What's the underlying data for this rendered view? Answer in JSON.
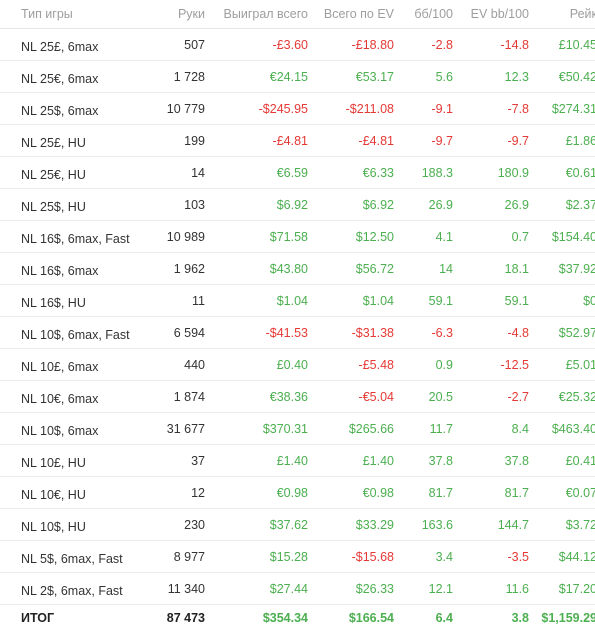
{
  "colors": {
    "header_text": "#9e9e9e",
    "positive": "#4caf50",
    "negative": "#e53935",
    "body_text": "#333333"
  },
  "table": {
    "headers": [
      "Тип игры",
      "Руки",
      "Выиграл всего",
      "Всего по EV",
      "бб/100",
      "EV bb/100",
      "Рейк"
    ],
    "rows": [
      {
        "cells": [
          "NL 25£, 6max",
          "507",
          "-£3.60",
          "-£18.80",
          "-2.8",
          "-14.8",
          "£10.45"
        ],
        "signs": [
          "",
          "",
          "neg",
          "neg",
          "neg",
          "neg",
          "pos"
        ]
      },
      {
        "cells": [
          "NL 25€, 6max",
          "1 728",
          "€24.15",
          "€53.17",
          "5.6",
          "12.3",
          "€50.42"
        ],
        "signs": [
          "",
          "",
          "pos",
          "pos",
          "pos",
          "pos",
          "pos"
        ]
      },
      {
        "cells": [
          "NL 25$, 6max",
          "10 779",
          "-$245.95",
          "-$211.08",
          "-9.1",
          "-7.8",
          "$274.31"
        ],
        "signs": [
          "",
          "",
          "neg",
          "neg",
          "neg",
          "neg",
          "pos"
        ]
      },
      {
        "cells": [
          "NL 25£, HU",
          "199",
          "-£4.81",
          "-£4.81",
          "-9.7",
          "-9.7",
          "£1.86"
        ],
        "signs": [
          "",
          "",
          "neg",
          "neg",
          "neg",
          "neg",
          "pos"
        ]
      },
      {
        "cells": [
          "NL 25€, HU",
          "14",
          "€6.59",
          "€6.33",
          "188.3",
          "180.9",
          "€0.61"
        ],
        "signs": [
          "",
          "",
          "pos",
          "pos",
          "pos",
          "pos",
          "pos"
        ]
      },
      {
        "cells": [
          "NL 25$, HU",
          "103",
          "$6.92",
          "$6.92",
          "26.9",
          "26.9",
          "$2.37"
        ],
        "signs": [
          "",
          "",
          "pos",
          "pos",
          "pos",
          "pos",
          "pos"
        ]
      },
      {
        "cells": [
          "NL 16$, 6max, Fast",
          "10 989",
          "$71.58",
          "$12.50",
          "4.1",
          "0.7",
          "$154.40"
        ],
        "signs": [
          "",
          "",
          "pos",
          "pos",
          "pos",
          "pos",
          "pos"
        ]
      },
      {
        "cells": [
          "NL 16$, 6max",
          "1 962",
          "$43.80",
          "$56.72",
          "14",
          "18.1",
          "$37.92"
        ],
        "signs": [
          "",
          "",
          "pos",
          "pos",
          "pos",
          "pos",
          "pos"
        ]
      },
      {
        "cells": [
          "NL 16$, HU",
          "11",
          "$1.04",
          "$1.04",
          "59.1",
          "59.1",
          "$0"
        ],
        "signs": [
          "",
          "",
          "pos",
          "pos",
          "pos",
          "pos",
          "pos"
        ]
      },
      {
        "cells": [
          "NL 10$, 6max, Fast",
          "6 594",
          "-$41.53",
          "-$31.38",
          "-6.3",
          "-4.8",
          "$52.97"
        ],
        "signs": [
          "",
          "",
          "neg",
          "neg",
          "neg",
          "neg",
          "pos"
        ]
      },
      {
        "cells": [
          "NL 10£, 6max",
          "440",
          "£0.40",
          "-£5.48",
          "0.9",
          "-12.5",
          "£5.01"
        ],
        "signs": [
          "",
          "",
          "pos",
          "neg",
          "pos",
          "neg",
          "pos"
        ]
      },
      {
        "cells": [
          "NL 10€, 6max",
          "1 874",
          "€38.36",
          "-€5.04",
          "20.5",
          "-2.7",
          "€25.32"
        ],
        "signs": [
          "",
          "",
          "pos",
          "neg",
          "pos",
          "neg",
          "pos"
        ]
      },
      {
        "cells": [
          "NL 10$, 6max",
          "31 677",
          "$370.31",
          "$265.66",
          "11.7",
          "8.4",
          "$463.40"
        ],
        "signs": [
          "",
          "",
          "pos",
          "pos",
          "pos",
          "pos",
          "pos"
        ]
      },
      {
        "cells": [
          "NL 10£, HU",
          "37",
          "£1.40",
          "£1.40",
          "37.8",
          "37.8",
          "£0.41"
        ],
        "signs": [
          "",
          "",
          "pos",
          "pos",
          "pos",
          "pos",
          "pos"
        ]
      },
      {
        "cells": [
          "NL 10€, HU",
          "12",
          "€0.98",
          "€0.98",
          "81.7",
          "81.7",
          "€0.07"
        ],
        "signs": [
          "",
          "",
          "pos",
          "pos",
          "pos",
          "pos",
          "pos"
        ]
      },
      {
        "cells": [
          "NL 10$, HU",
          "230",
          "$37.62",
          "$33.29",
          "163.6",
          "144.7",
          "$3.72"
        ],
        "signs": [
          "",
          "",
          "pos",
          "pos",
          "pos",
          "pos",
          "pos"
        ]
      },
      {
        "cells": [
          "NL 5$, 6max, Fast",
          "8 977",
          "$15.28",
          "-$15.68",
          "3.4",
          "-3.5",
          "$44.12"
        ],
        "signs": [
          "",
          "",
          "pos",
          "neg",
          "pos",
          "neg",
          "pos"
        ]
      },
      {
        "cells": [
          "NL 2$, 6max, Fast",
          "11 340",
          "$27.44",
          "$26.33",
          "12.1",
          "11.6",
          "$17.20"
        ],
        "signs": [
          "",
          "",
          "pos",
          "pos",
          "pos",
          "pos",
          "pos"
        ]
      }
    ],
    "total": {
      "cells": [
        "ИТОГ",
        "87 473",
        "$354.34",
        "$166.54",
        "6.4",
        "3.8",
        "$1,159.29"
      ],
      "signs": [
        "",
        "",
        "pos",
        "pos",
        "pos",
        "pos",
        "pos"
      ]
    }
  }
}
